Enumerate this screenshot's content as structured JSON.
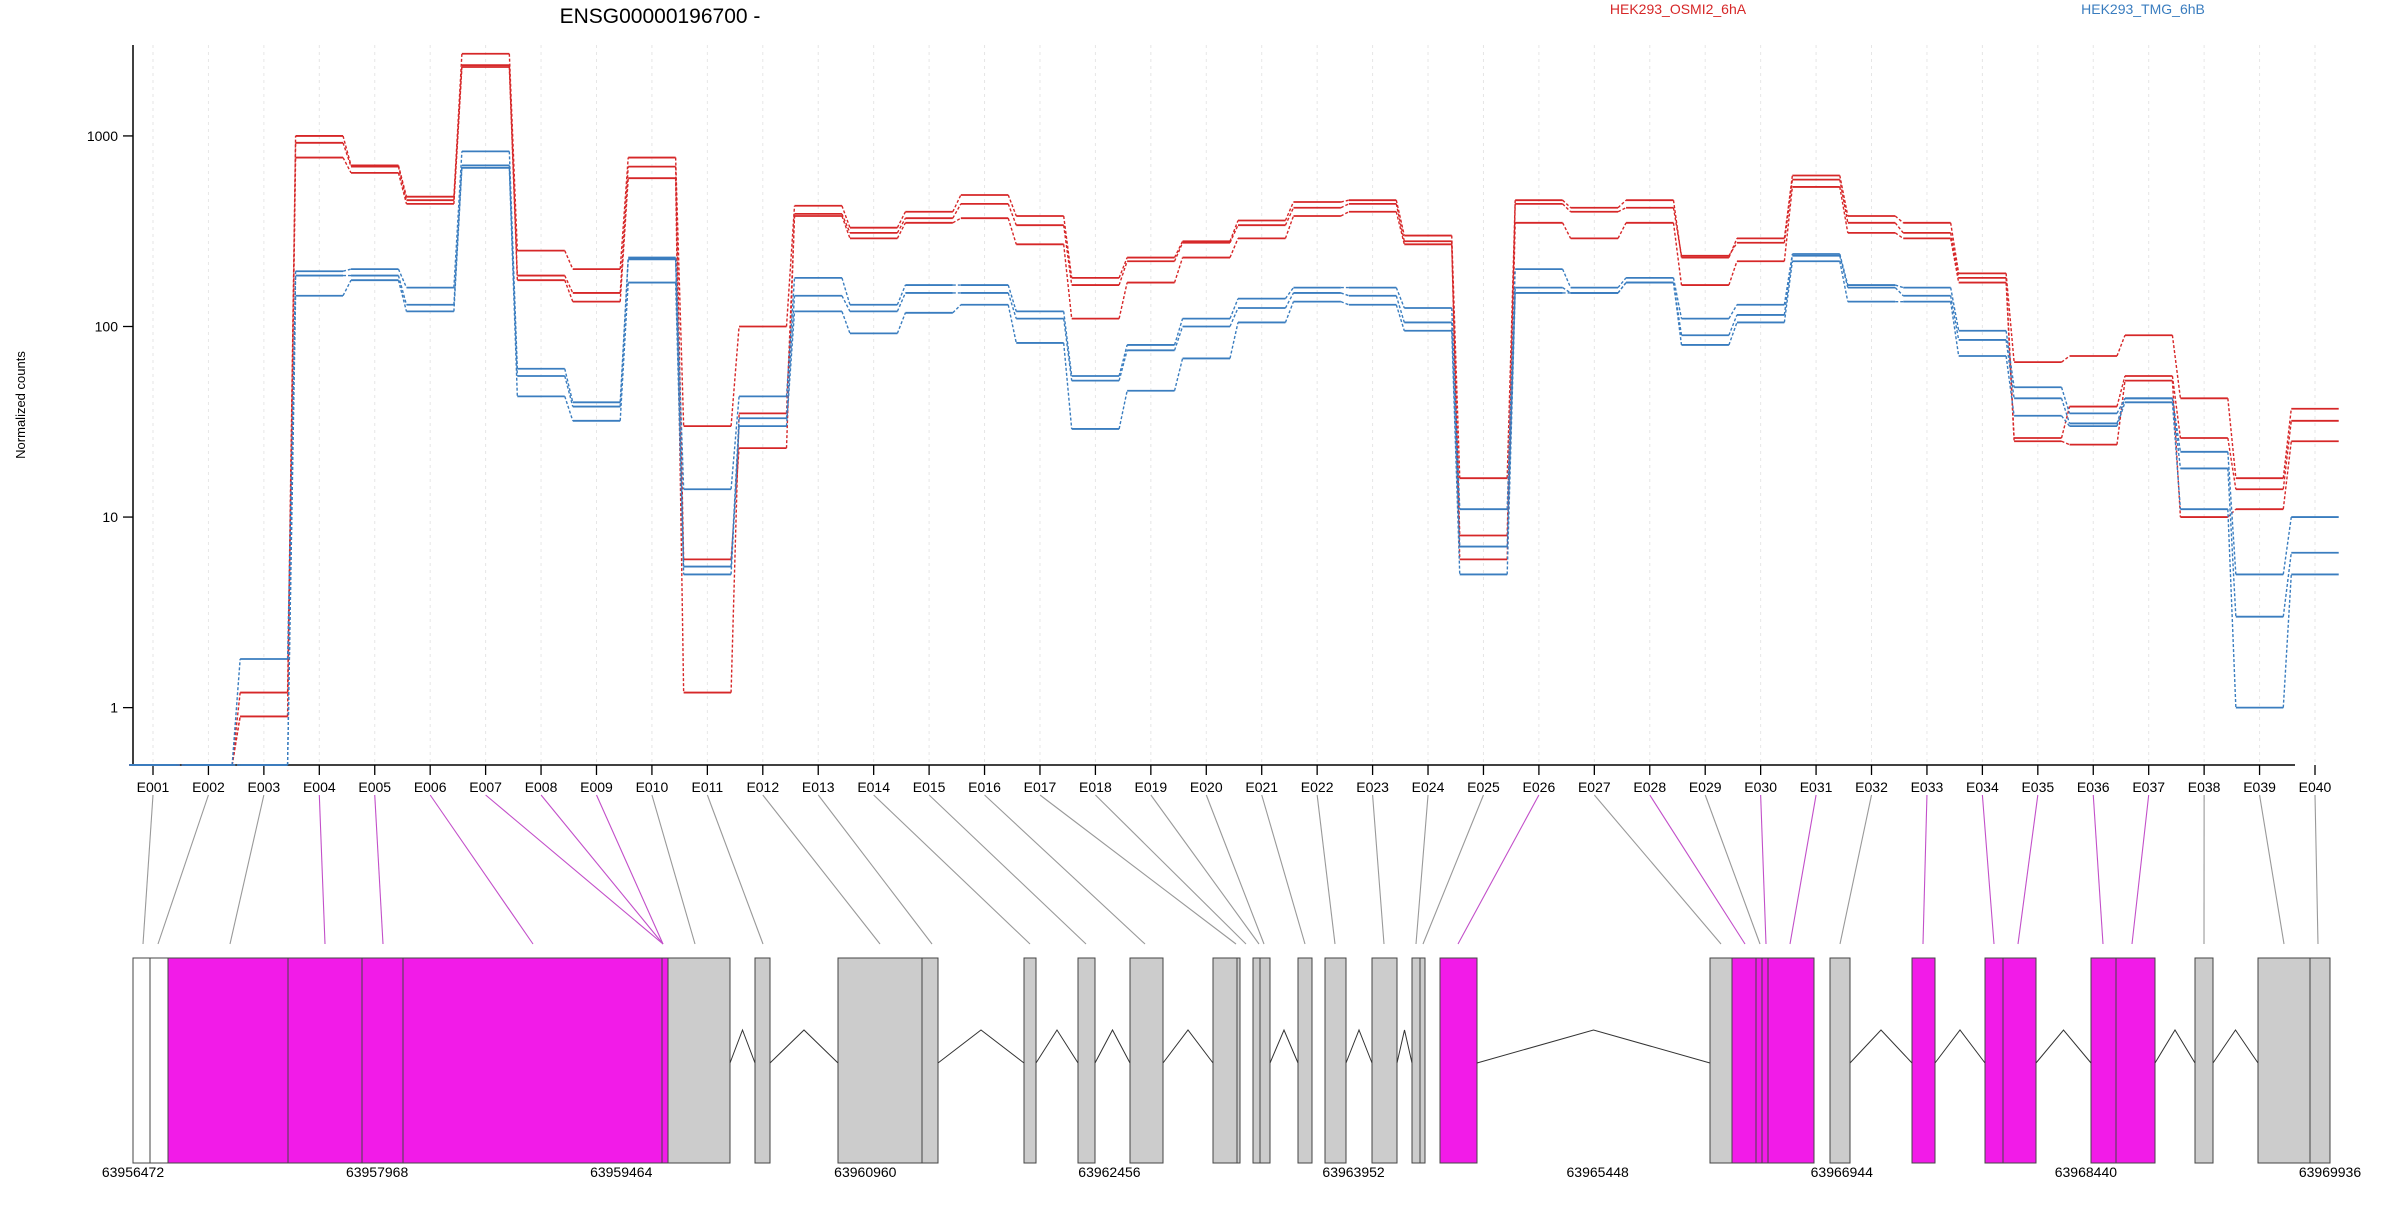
{
  "chart_data": {
    "type": "line",
    "title": "ENSG00000196700 -",
    "ylabel": "Normalized counts",
    "yscale": "log",
    "ylim": [
      0.5,
      3000
    ],
    "yticks": [
      1,
      10,
      100,
      1000
    ],
    "grid": true,
    "legend_position": "top",
    "legend": [
      {
        "label": "HEK293_OSMI2_6hA",
        "color": "#d62728"
      },
      {
        "label": "HEK293_TMG_6hB",
        "color": "#3a7dbf"
      }
    ],
    "categories": [
      "E001",
      "E002",
      "E003",
      "E004",
      "E005",
      "E006",
      "E007",
      "E008",
      "E009",
      "E010",
      "E011",
      "E012",
      "E013",
      "E014",
      "E015",
      "E016",
      "E017",
      "E018",
      "E019",
      "E020",
      "E021",
      "E022",
      "E023",
      "E024",
      "E025",
      "E026",
      "E027",
      "E028",
      "E029",
      "E030",
      "E031",
      "E032",
      "E033",
      "E034",
      "E035",
      "E036",
      "E037",
      "E038",
      "E039",
      "E040"
    ],
    "series": [
      {
        "group": "HEK293_OSMI2_6hA",
        "color": "#d62728",
        "values": [
          0.5,
          0.5,
          1.2,
          1000,
          700,
          480,
          2700,
          250,
          200,
          770,
          30,
          100,
          430,
          330,
          400,
          490,
          380,
          180,
          230,
          280,
          360,
          450,
          460,
          300,
          16,
          460,
          420,
          460,
          230,
          290,
          620,
          380,
          350,
          190,
          65,
          70,
          90,
          42,
          16,
          37
        ]
      },
      {
        "group": "HEK293_OSMI2_6hA",
        "color": "#d62728",
        "values": [
          0.5,
          0.5,
          0.9,
          920,
          690,
          460,
          2350,
          185,
          150,
          690,
          6,
          23,
          390,
          310,
          370,
          440,
          340,
          165,
          220,
          275,
          340,
          420,
          440,
          280,
          8,
          440,
          400,
          420,
          235,
          275,
          590,
          350,
          310,
          180,
          26,
          38,
          55,
          26,
          14,
          32
        ]
      },
      {
        "group": "HEK293_OSMI2_6hA",
        "color": "#d62728",
        "values": [
          0.5,
          0.5,
          0.9,
          770,
          640,
          440,
          2300,
          175,
          135,
          600,
          1.2,
          35,
          380,
          290,
          350,
          370,
          270,
          110,
          170,
          230,
          290,
          380,
          400,
          270,
          6,
          350,
          290,
          350,
          165,
          220,
          540,
          310,
          290,
          170,
          25,
          24,
          52,
          10,
          11,
          25
        ]
      },
      {
        "group": "HEK293_TMG_6hB",
        "color": "#3a7dbf",
        "values": [
          0.5,
          0.5,
          1.8,
          195,
          200,
          160,
          830,
          60,
          40,
          230,
          14,
          43,
          180,
          130,
          165,
          165,
          120,
          55,
          80,
          110,
          140,
          160,
          160,
          125,
          11,
          200,
          160,
          180,
          110,
          130,
          240,
          165,
          160,
          95,
          48,
          35,
          42,
          22,
          5,
          10
        ]
      },
      {
        "group": "HEK293_TMG_6hB",
        "color": "#3a7dbf",
        "values": [
          0.5,
          0.5,
          0.5,
          185,
          185,
          130,
          700,
          55,
          38,
          225,
          5.5,
          33,
          145,
          120,
          150,
          150,
          110,
          52,
          75,
          100,
          125,
          150,
          145,
          105,
          7,
          160,
          150,
          170,
          90,
          115,
          235,
          160,
          145,
          85,
          42,
          31,
          42,
          18,
          3,
          6.5
        ]
      },
      {
        "group": "HEK293_TMG_6hB",
        "color": "#3a7dbf",
        "values": [
          0.5,
          0.5,
          0.5,
          145,
          175,
          120,
          680,
          43,
          32,
          170,
          5,
          30,
          120,
          92,
          118,
          130,
          82,
          29,
          46,
          68,
          105,
          135,
          130,
          95,
          5,
          150,
          150,
          170,
          80,
          105,
          220,
          135,
          135,
          70,
          34,
          30,
          40,
          11,
          1,
          5
        ]
      }
    ],
    "exon_coordinates": [
      "63956472",
      "63957968",
      "63959464",
      "63960960",
      "63962456",
      "63963952",
      "63965448",
      "63966944",
      "63968440",
      "63969936"
    ]
  }
}
